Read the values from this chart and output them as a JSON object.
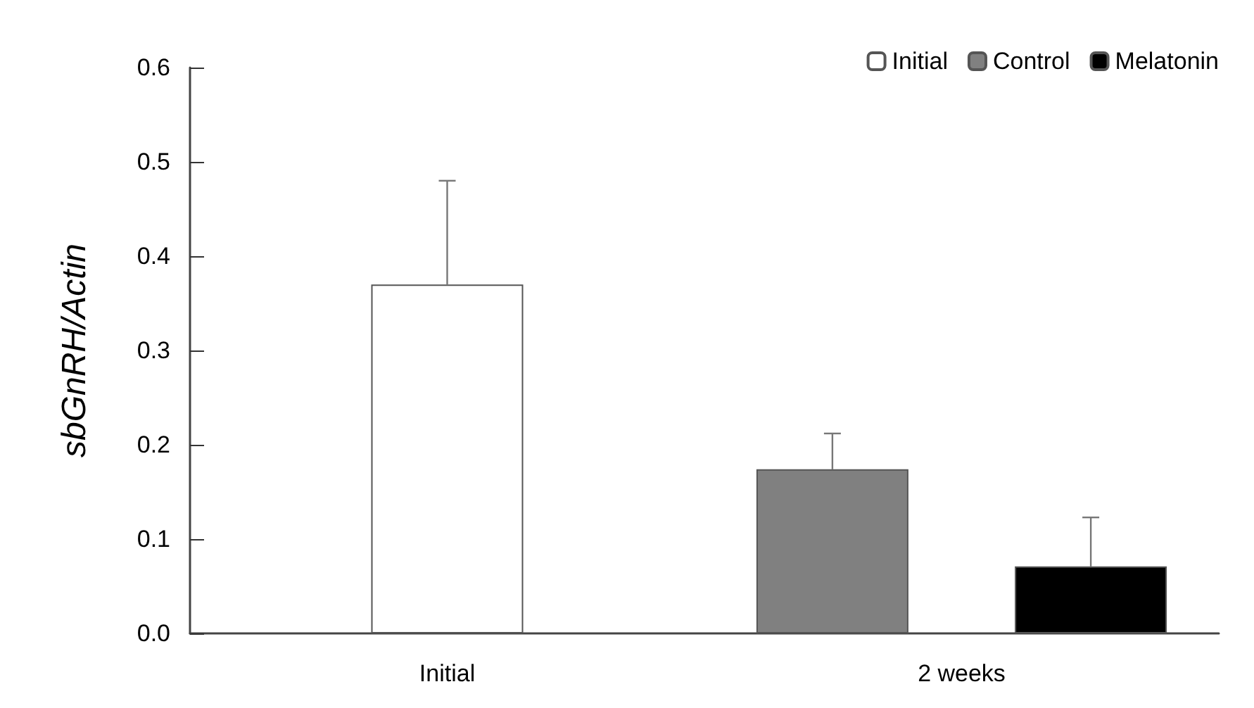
{
  "chart_data": {
    "type": "bar",
    "ylabel": "sbGnRH/Actin",
    "categories": [
      "Initial",
      "2 weeks"
    ],
    "series": [
      {
        "name": "Initial",
        "color": "#ffffff",
        "values": [
          0.37,
          null
        ],
        "errors": [
          [
            0.37,
            0.48
          ],
          null
        ]
      },
      {
        "name": "Control",
        "color": "#808080",
        "values": [
          null,
          0.174
        ],
        "errors": [
          null,
          [
            0.174,
            0.212
          ]
        ]
      },
      {
        "name": "Melatonin",
        "color": "#000000",
        "values": [
          null,
          0.071
        ],
        "errors": [
          null,
          [
            0.071,
            0.123
          ]
        ]
      }
    ],
    "ylim": [
      0,
      0.6
    ],
    "yticks": [
      {
        "value": 0,
        "label": "0.0"
      },
      0.1,
      0.2,
      0.3,
      0.4,
      0.5,
      0.6
    ],
    "grid": false,
    "legend": "top right"
  }
}
